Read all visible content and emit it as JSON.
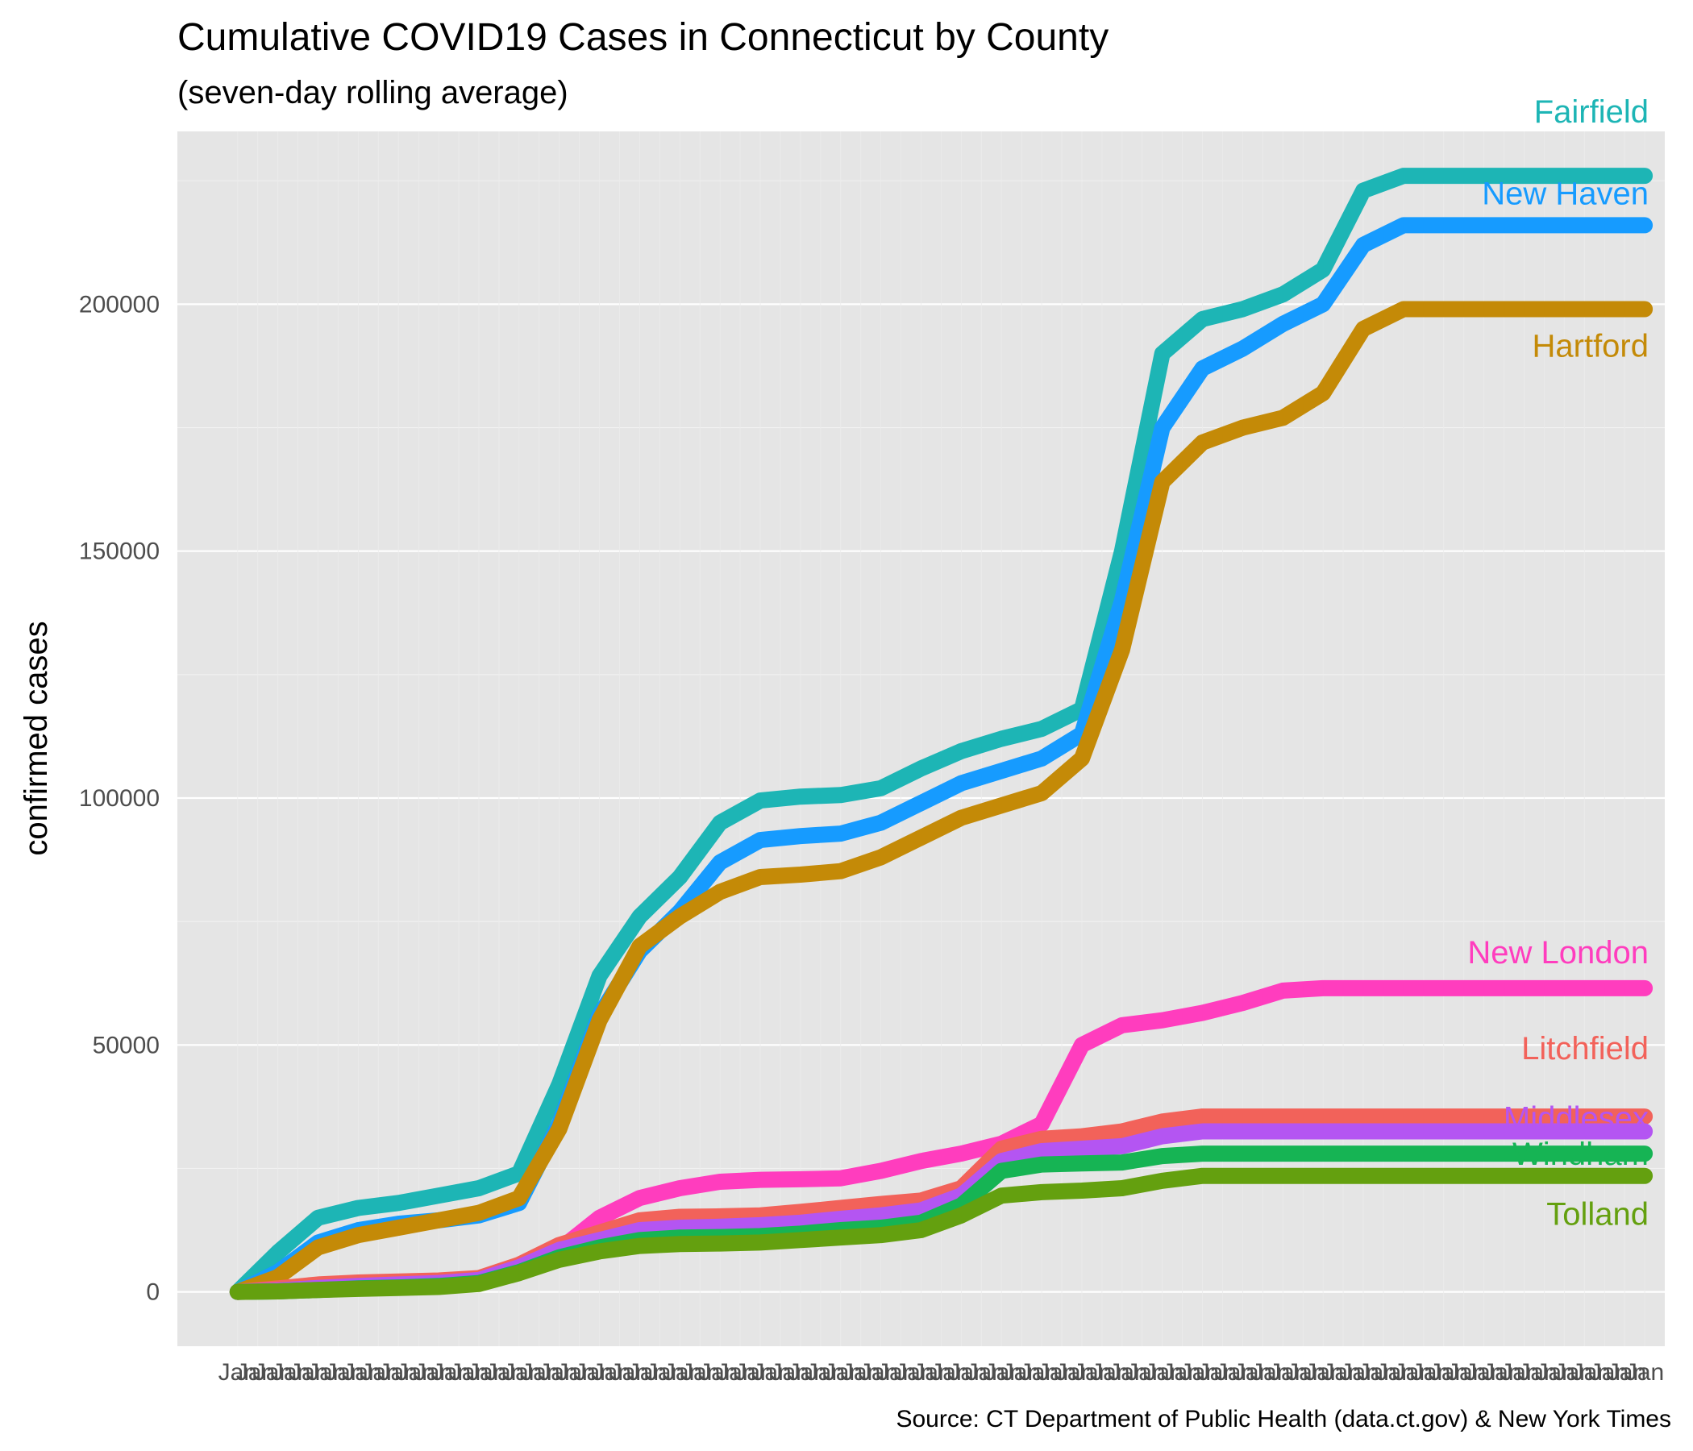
{
  "chart_data": {
    "type": "line",
    "title": "Cumulative COVID19 Cases in Connecticut by County",
    "subtitle": "(seven-day rolling average)",
    "ylabel": "confirmed cases",
    "xlabel": "",
    "caption": "Source: CT Department of Public Health (data.ct.gov) & New York Times",
    "ylim": [
      -11000,
      235000
    ],
    "xlim": [
      -30,
      710
    ],
    "y_ticks": [
      0,
      50000,
      100000,
      150000,
      200000
    ],
    "y_tick_labels": [
      "0",
      "50000",
      "100000",
      "150000",
      "200000"
    ],
    "x_tick_labels": [
      "Jan"
    ],
    "grid": true,
    "legend": "none",
    "x": [
      0,
      20,
      40,
      60,
      80,
      100,
      120,
      140,
      160,
      180,
      200,
      220,
      240,
      260,
      280,
      300,
      320,
      340,
      360,
      380,
      400,
      420,
      440,
      460,
      480,
      500,
      520,
      540,
      560,
      580,
      600,
      620,
      640,
      660,
      680,
      700
    ],
    "series": [
      {
        "name": "Fairfield",
        "color": "#1DB5B5",
        "values": [
          0,
          8000,
          15000,
          17000,
          18000,
          19500,
          21000,
          24000,
          42000,
          64000,
          76000,
          84000,
          95000,
          99500,
          100300,
          100600,
          102000,
          106000,
          109500,
          112000,
          114000,
          118000,
          150000,
          190000,
          197000,
          199000,
          202000,
          207000,
          223000,
          226000,
          226000,
          226000,
          226000,
          226000,
          226000,
          226000
        ]
      },
      {
        "name": "New Haven",
        "color": "#169BFF",
        "values": [
          0,
          4000,
          10000,
          12500,
          13800,
          14500,
          15500,
          18000,
          34000,
          56000,
          69000,
          77000,
          87000,
          91500,
          92300,
          92800,
          95000,
          99000,
          103000,
          105500,
          108000,
          113000,
          140000,
          175000,
          187000,
          191000,
          196000,
          200000,
          212000,
          216000,
          216000,
          216000,
          216000,
          216000,
          216000,
          216000
        ]
      },
      {
        "name": "Hartford",
        "color": "#C48A07",
        "values": [
          0,
          3000,
          9000,
          11500,
          13000,
          14500,
          16000,
          19000,
          33000,
          55000,
          70000,
          76000,
          81000,
          84000,
          84500,
          85200,
          88000,
          92000,
          96000,
          98500,
          101000,
          108000,
          130000,
          164000,
          172000,
          175000,
          177000,
          182000,
          195000,
          199000,
          199000,
          199000,
          199000,
          199000,
          199000,
          199000
        ]
      },
      {
        "name": "New London",
        "color": "#FF3DBE",
        "values": [
          0,
          200,
          600,
          900,
          1200,
          1600,
          2200,
          4500,
          8500,
          15000,
          19000,
          21000,
          22300,
          22700,
          22800,
          23000,
          24500,
          26500,
          28000,
          30000,
          34000,
          50000,
          54000,
          55000,
          56500,
          58500,
          61000,
          61500,
          61500,
          61500,
          61500,
          61500,
          61500,
          61500,
          61500,
          61500
        ]
      },
      {
        "name": "Litchfield",
        "color": "#F2625A",
        "values": [
          0,
          700,
          1500,
          1900,
          2100,
          2300,
          2800,
          5500,
          9500,
          12000,
          14500,
          15200,
          15300,
          15500,
          16200,
          17000,
          17800,
          18500,
          21000,
          29000,
          31000,
          31500,
          32500,
          34500,
          35500,
          35500,
          35500,
          35500,
          35500,
          35500,
          35500,
          35500,
          35500,
          35500,
          35500,
          35500
        ]
      },
      {
        "name": "Middlesex",
        "color": "#B455F2",
        "values": [
          0,
          300,
          800,
          1200,
          1500,
          1800,
          2400,
          5000,
          8500,
          10500,
          12500,
          13000,
          13200,
          13500,
          14000,
          14800,
          15500,
          16500,
          19500,
          26500,
          28500,
          29000,
          29500,
          31500,
          32500,
          32500,
          32500,
          32500,
          32500,
          32500,
          32500,
          32500,
          32500,
          32500,
          32500,
          32500
        ]
      },
      {
        "name": "Windham",
        "color": "#16B454",
        "values": [
          0,
          100,
          400,
          700,
          900,
          1200,
          1800,
          4000,
          7000,
          9000,
          10500,
          11000,
          11100,
          11300,
          11800,
          12500,
          13000,
          14000,
          17500,
          24500,
          25800,
          26000,
          26200,
          27500,
          28000,
          28000,
          28000,
          28000,
          28000,
          28000,
          28000,
          28000,
          28000,
          28000,
          28000,
          28000
        ]
      },
      {
        "name": "Tolland",
        "color": "#64A00F",
        "values": [
          0,
          100,
          400,
          600,
          800,
          1000,
          1600,
          3800,
          6500,
          8200,
          9300,
          9700,
          9800,
          10000,
          10500,
          11000,
          11500,
          12500,
          15500,
          19500,
          20200,
          20500,
          21000,
          22500,
          23500,
          23500,
          23500,
          23500,
          23500,
          23500,
          23500,
          23500,
          23500,
          23500,
          23500,
          23500
        ]
      }
    ]
  }
}
